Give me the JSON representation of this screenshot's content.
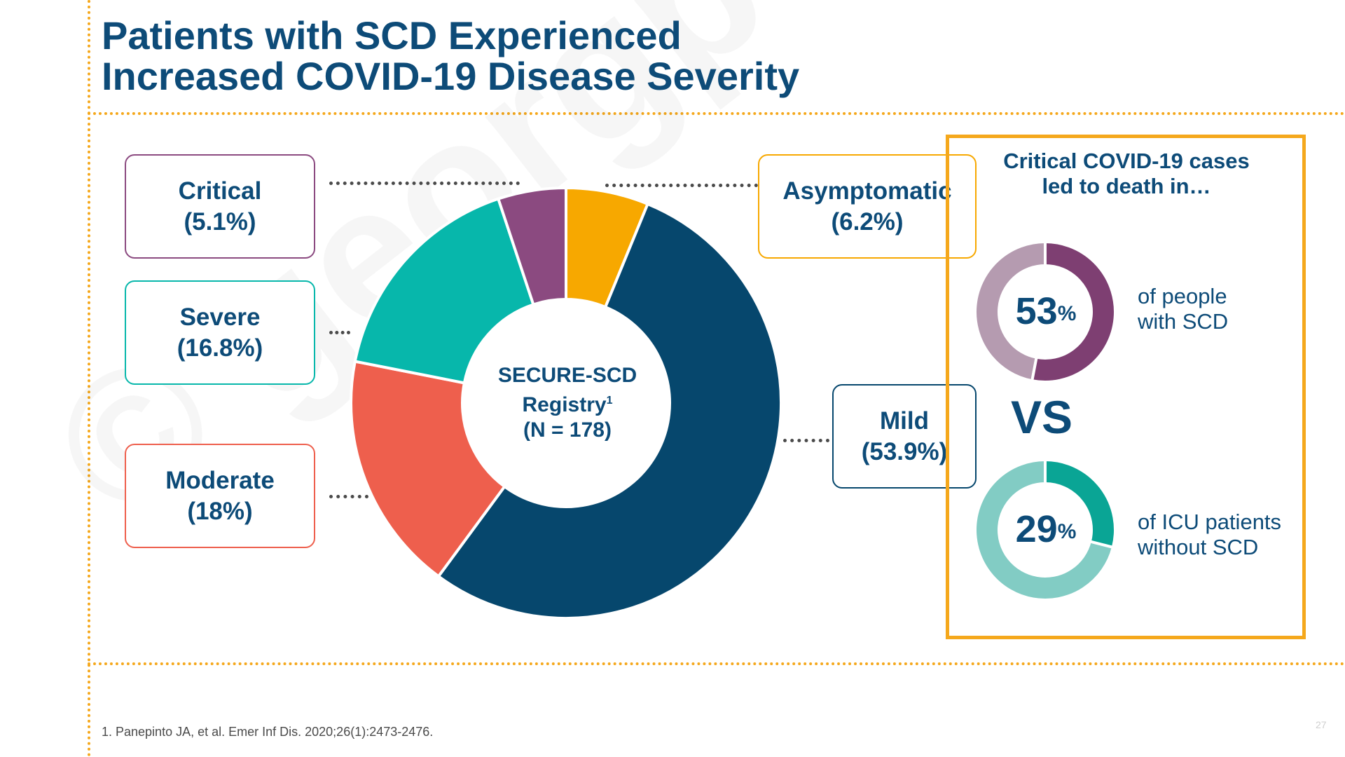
{
  "title": {
    "line1": "Patients with SCD Experienced",
    "line2": "Increased COVID-19 Disease Severity"
  },
  "watermark": "© georgpurvis",
  "chart_data": [
    {
      "type": "pie",
      "title": "",
      "center_label": {
        "line1": "SECURE-SCD",
        "line2": "Registry",
        "superscript": "1",
        "line3": "(N = 178)"
      },
      "slices": [
        {
          "name": "Asymptomatic",
          "value": 6.2,
          "label": "(6.2%)",
          "color": "#f7a800"
        },
        {
          "name": "Mild",
          "value": 53.9,
          "label": "(53.9%)",
          "color": "#06476d"
        },
        {
          "name": "Moderate",
          "value": 18.0,
          "label": "(18%)",
          "color": "#ee5f4d"
        },
        {
          "name": "Severe",
          "value": 16.8,
          "label": "(16.8%)",
          "color": "#07b7ab"
        },
        {
          "name": "Critical",
          "value": 5.1,
          "label": "(5.1%)",
          "color": "#8b4a80"
        }
      ]
    },
    {
      "type": "pie",
      "title": "",
      "value": 53,
      "value_label": "53",
      "percent_symbol": "%",
      "description": {
        "line1": "of people",
        "line2": "with SCD"
      },
      "color": "#7e3f72",
      "track_color": "#b59bb0"
    },
    {
      "type": "pie",
      "title": "",
      "value": 29,
      "value_label": "29",
      "percent_symbol": "%",
      "description": {
        "line1": "of ICU patients",
        "line2": "without SCD"
      },
      "color": "#0aa595",
      "track_color": "#82ccc4"
    }
  ],
  "panel": {
    "title_line1": "Critical COVID-19 cases",
    "title_line2": "led to death in…",
    "vs": "VS"
  },
  "footnote": "1.  Panepinto JA, et al. Emer Inf Dis. 2020;26(1):2473-2476.",
  "page_number": "27",
  "colors": {
    "title": "#0d4b78",
    "accent_orange": "#f5a81c"
  }
}
